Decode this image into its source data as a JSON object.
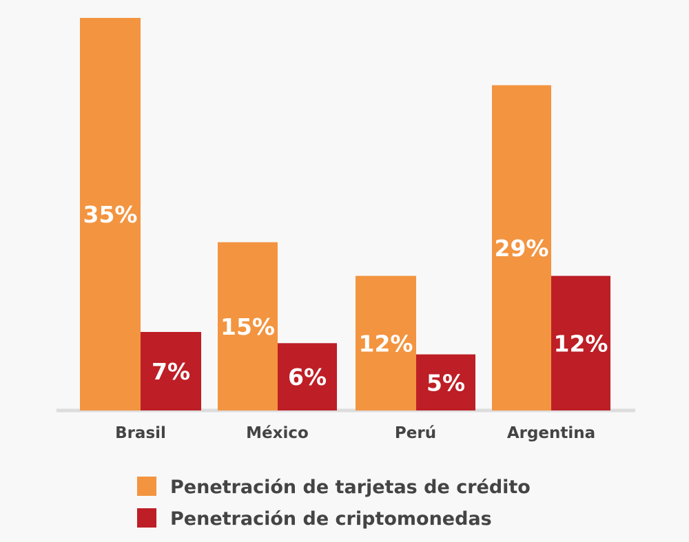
{
  "chart_data": {
    "type": "bar",
    "categories": [
      "Brasil",
      "México",
      "Perú",
      "Argentina"
    ],
    "series": [
      {
        "name": "Penetración de tarjetas de crédito",
        "values": [
          35,
          15,
          12,
          29
        ],
        "labels": [
          "35%",
          "15%",
          "12%",
          "29%"
        ],
        "color": "#f39440"
      },
      {
        "name": "Penetración de criptomonedas",
        "values": [
          7,
          6,
          5,
          12
        ],
        "labels": [
          "7%",
          "6%",
          "5%",
          "12%"
        ],
        "color": "#be1e26"
      }
    ],
    "title": "",
    "xlabel": "",
    "ylabel": "",
    "ylim": [
      0,
      35
    ],
    "grid": false,
    "legend": "bottom",
    "baseline_color": "#dddddd",
    "text_color": "#444444",
    "label_color": "#ffffff"
  }
}
